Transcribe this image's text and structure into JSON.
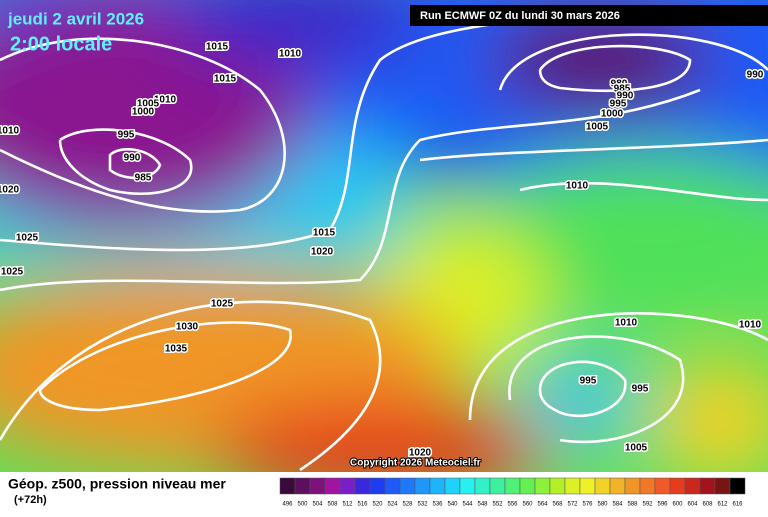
{
  "header": {
    "date": "jeudi 2 avril 2026",
    "time": "2:00 locale",
    "run": "Run ECMWF 0Z du lundi 30 mars 2026"
  },
  "copyright": "Copyright 2026 Meteociel.fr",
  "footer": {
    "title": "Géop. z500, pression niveau mer",
    "lead": "(+72h)"
  },
  "isobar_labels": [
    1015,
    1015,
    1010,
    1010,
    1005,
    1000,
    995,
    990,
    985,
    1010,
    1020,
    1025,
    1025,
    1015,
    1020,
    1025,
    1030,
    1035,
    980,
    985,
    990,
    995,
    1000,
    1005,
    990,
    1010,
    1010,
    1010,
    995,
    995,
    1005,
    1020
  ],
  "colorbar": {
    "levels": [
      496,
      500,
      504,
      508,
      512,
      516,
      520,
      524,
      528,
      532,
      536,
      540,
      544,
      548,
      552,
      556,
      560,
      564,
      568,
      572,
      576,
      580,
      584,
      588,
      592,
      596,
      600,
      604,
      608,
      612,
      616
    ],
    "colors": [
      "#3a0a3a",
      "#5c0f5c",
      "#7d127d",
      "#a015a0",
      "#7a1ec8",
      "#3c28dc",
      "#1e3cf0",
      "#1e5af5",
      "#1e78fa",
      "#1e96fa",
      "#1eb4fa",
      "#1ed2fa",
      "#28f0f0",
      "#32f0c8",
      "#3cf0a0",
      "#50f078",
      "#64f050",
      "#8cf03c",
      "#b4f028",
      "#dcf028",
      "#f0f028",
      "#f0d228",
      "#f0b428",
      "#f09628",
      "#f07828",
      "#f05a28",
      "#e63c1e",
      "#c8281e",
      "#a0141e",
      "#781414",
      "#000000"
    ]
  }
}
